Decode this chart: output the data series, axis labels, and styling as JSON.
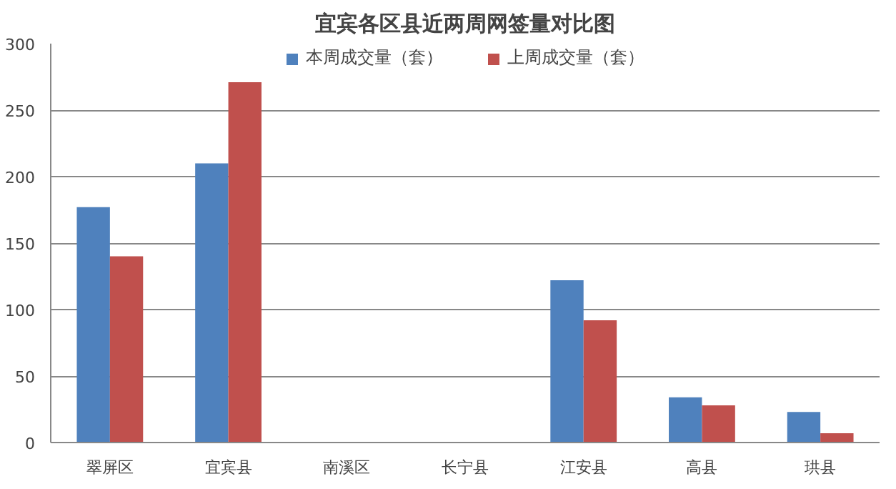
{
  "chart_data": {
    "type": "bar",
    "title": "宜宾各区县近两周网签量对比图",
    "categories": [
      "翠屏区",
      "宜宾县",
      "南溪区",
      "长宁县",
      "江安县",
      "高县",
      "珙县"
    ],
    "series": [
      {
        "name": "本周成交量（套）",
        "color": "#4f81bd",
        "values": [
          177,
          210,
          0,
          0,
          122,
          34,
          23
        ]
      },
      {
        "name": "上周成交量（套）",
        "color": "#c0504d",
        "values": [
          140,
          271,
          0,
          0,
          92,
          28,
          7
        ]
      }
    ],
    "ylim": [
      0,
      300
    ],
    "yticks": [
      0,
      50,
      100,
      150,
      200,
      250,
      300
    ],
    "grid": "y",
    "legend": "top"
  }
}
